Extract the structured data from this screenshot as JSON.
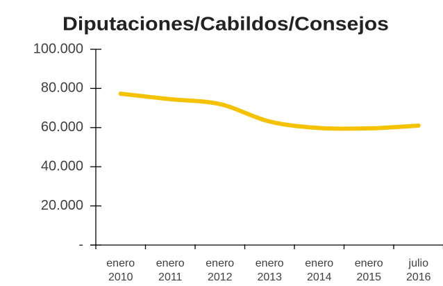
{
  "chart_data": {
    "type": "line",
    "title": "Diputaciones/Cabildos/Consejos",
    "categories": [
      [
        "enero",
        "2010"
      ],
      [
        "enero",
        "2011"
      ],
      [
        "enero",
        "2012"
      ],
      [
        "enero",
        "2013"
      ],
      [
        "enero",
        "2014"
      ],
      [
        "enero",
        "2015"
      ],
      [
        "julio",
        "2016"
      ]
    ],
    "series": [
      {
        "name": null,
        "color": "#f5c200",
        "values": [
          77300,
          74500,
          72000,
          63100,
          59800,
          59600,
          61000
        ]
      }
    ],
    "ylim": [
      0,
      100000
    ],
    "yticks": [
      {
        "value": 0,
        "label": "-"
      },
      {
        "value": 20000,
        "label": "20.000"
      },
      {
        "value": 40000,
        "label": "40.000"
      },
      {
        "value": 60000,
        "label": "60.000"
      },
      {
        "value": 80000,
        "label": "80.000"
      },
      {
        "value": 100000,
        "label": "100.000"
      }
    ],
    "grid": false,
    "smooth": true
  }
}
